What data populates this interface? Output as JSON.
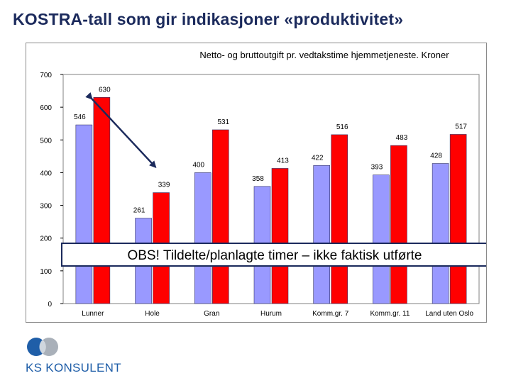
{
  "slide": {
    "title": "KOSTRA-tall som gir indikasjoner «produktivitet»"
  },
  "chart_data": {
    "type": "bar",
    "title": "Netto- og bruttoutgift pr. vedtakstime hjemmetjeneste. Kroner",
    "categories": [
      "Lunner",
      "Hole",
      "Gran",
      "Hurum",
      "Komm.gr. 7",
      "Komm.gr. 11",
      "Land uten Oslo"
    ],
    "series": [
      {
        "values": [
          546,
          261,
          400,
          358,
          422,
          393,
          428
        ],
        "color": "#9999ff"
      },
      {
        "values": [
          630,
          339,
          531,
          413,
          516,
          483,
          517
        ],
        "color": "#ff0000"
      }
    ],
    "ylim": [
      0,
      700
    ],
    "yticks": [
      0,
      100,
      200,
      300,
      400,
      500,
      600,
      700
    ],
    "xlabel": "",
    "ylabel": "",
    "grid": false,
    "legend": "none",
    "annotation": "OBS! Tildelte/planlagte timer – ikke faktisk utførte",
    "arrow": {
      "from_category": "Lunner",
      "from_series": 1,
      "to_category": "Hole",
      "to_series": 1
    }
  },
  "logo": {
    "text": "KS KONSULENT",
    "colors": [
      "#1f5ea8",
      "#9aa2ad"
    ]
  }
}
